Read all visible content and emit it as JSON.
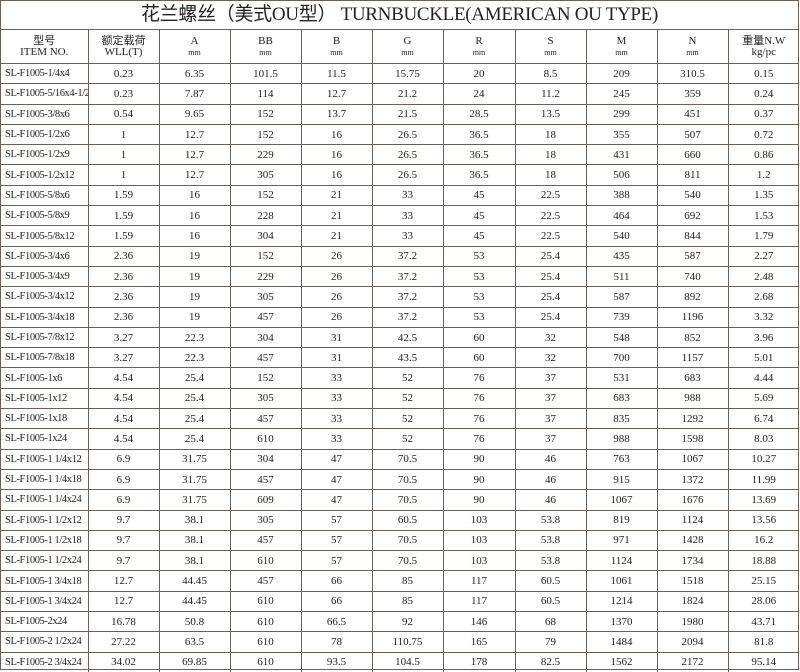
{
  "title": "花兰螺丝（美式OU型） TURNBUCKLE(AMERICAN OU TYPE)",
  "columns": [
    {
      "label": "型号",
      "sub": "ITEM NO."
    },
    {
      "label": "额定载荷",
      "sub": "WLL(T)"
    },
    {
      "label": "A",
      "sub": "mm"
    },
    {
      "label": "BB",
      "sub": "mm"
    },
    {
      "label": "B",
      "sub": "mm"
    },
    {
      "label": "G",
      "sub": "mm"
    },
    {
      "label": "R",
      "sub": "mm"
    },
    {
      "label": "S",
      "sub": "mm"
    },
    {
      "label": "M",
      "sub": "mm"
    },
    {
      "label": "N",
      "sub": "mm"
    },
    {
      "label": "重量N.W",
      "sub": "kg/pc"
    }
  ],
  "rows": [
    [
      "SL-F1005-1/4x4",
      "0.23",
      "6.35",
      "101.5",
      "11.5",
      "15.75",
      "20",
      "8.5",
      "209",
      "310.5",
      "0.15"
    ],
    [
      "SL-F1005-5/16x4-1/2",
      "0.23",
      "7.87",
      "114",
      "12.7",
      "21.2",
      "24",
      "11.2",
      "245",
      "359",
      "0.24"
    ],
    [
      "SL-F1005-3/8x6",
      "0.54",
      "9.65",
      "152",
      "13.7",
      "21.5",
      "28.5",
      "13.5",
      "299",
      "451",
      "0.37"
    ],
    [
      "SL-F1005-1/2x6",
      "1",
      "12.7",
      "152",
      "16",
      "26.5",
      "36.5",
      "18",
      "355",
      "507",
      "0.72"
    ],
    [
      "SL-F1005-1/2x9",
      "1",
      "12.7",
      "229",
      "16",
      "26.5",
      "36.5",
      "18",
      "431",
      "660",
      "0.86"
    ],
    [
      "SL-F1005-1/2x12",
      "1",
      "12.7",
      "305",
      "16",
      "26.5",
      "36.5",
      "18",
      "506",
      "811",
      "1.2"
    ],
    [
      "SL-F1005-5/8x6",
      "1.59",
      "16",
      "152",
      "21",
      "33",
      "45",
      "22.5",
      "388",
      "540",
      "1.35"
    ],
    [
      "SL-F1005-5/8x9",
      "1.59",
      "16",
      "228",
      "21",
      "33",
      "45",
      "22.5",
      "464",
      "692",
      "1.53"
    ],
    [
      "SL-F1005-5/8x12",
      "1.59",
      "16",
      "304",
      "21",
      "33",
      "45",
      "22.5",
      "540",
      "844",
      "1.79"
    ],
    [
      "SL-F1005-3/4x6",
      "2.36",
      "19",
      "152",
      "26",
      "37.2",
      "53",
      "25.4",
      "435",
      "587",
      "2.27"
    ],
    [
      "SL-F1005-3/4x9",
      "2.36",
      "19",
      "229",
      "26",
      "37.2",
      "53",
      "25.4",
      "511",
      "740",
      "2.48"
    ],
    [
      "SL-F1005-3/4x12",
      "2.36",
      "19",
      "305",
      "26",
      "37.2",
      "53",
      "25.4",
      "587",
      "892",
      "2.68"
    ],
    [
      "SL-F1005-3/4x18",
      "2.36",
      "19",
      "457",
      "26",
      "37.2",
      "53",
      "25.4",
      "739",
      "1196",
      "3.32"
    ],
    [
      "SL-F1005-7/8x12",
      "3.27",
      "22.3",
      "304",
      "31",
      "42.5",
      "60",
      "32",
      "548",
      "852",
      "3.96"
    ],
    [
      "SL-F1005-7/8x18",
      "3.27",
      "22.3",
      "457",
      "31",
      "43.5",
      "60",
      "32",
      "700",
      "1157",
      "5.01"
    ],
    [
      "SL-F1005-1x6",
      "4.54",
      "25.4",
      "152",
      "33",
      "52",
      "76",
      "37",
      "531",
      "683",
      "4.44"
    ],
    [
      "SL-F1005-1x12",
      "4.54",
      "25.4",
      "305",
      "33",
      "52",
      "76",
      "37",
      "683",
      "988",
      "5.69"
    ],
    [
      "SL-F1005-1x18",
      "4.54",
      "25.4",
      "457",
      "33",
      "52",
      "76",
      "37",
      "835",
      "1292",
      "6.74"
    ],
    [
      "SL-F1005-1x24",
      "4.54",
      "25.4",
      "610",
      "33",
      "52",
      "76",
      "37",
      "988",
      "1598",
      "8.03"
    ],
    [
      "SL-F1005-1 1/4x12",
      "6.9",
      "31.75",
      "304",
      "47",
      "70.5",
      "90",
      "46",
      "763",
      "1067",
      "10.27"
    ],
    [
      "SL-F1005-1 1/4x18",
      "6.9",
      "31.75",
      "457",
      "47",
      "70.5",
      "90",
      "46",
      "915",
      "1372",
      "11.99"
    ],
    [
      "SL-F1005-1 1/4x24",
      "6.9",
      "31.75",
      "609",
      "47",
      "70.5",
      "90",
      "46",
      "1067",
      "1676",
      "13.69"
    ],
    [
      "SL-F1005-1 1/2x12",
      "9.7",
      "38.1",
      "305",
      "57",
      "60.5",
      "103",
      "53.8",
      "819",
      "1124",
      "13.56"
    ],
    [
      "SL-F1005-1 1/2x18",
      "9.7",
      "38.1",
      "457",
      "57",
      "70.5",
      "103",
      "53.8",
      "971",
      "1428",
      "16.2"
    ],
    [
      "SL-F1005-1 1/2x24",
      "9.7",
      "38.1",
      "610",
      "57",
      "70.5",
      "103",
      "53.8",
      "1124",
      "1734",
      "18.88"
    ],
    [
      "SL-F1005-1 3/4x18",
      "12.7",
      "44.45",
      "457",
      "66",
      "85",
      "117",
      "60.5",
      "1061",
      "1518",
      "25.15"
    ],
    [
      "SL-F1005-1 3/4x24",
      "12.7",
      "44.45",
      "610",
      "66",
      "85",
      "117",
      "60.5",
      "1214",
      "1824",
      "28.06"
    ],
    [
      "SL-F1005-2x24",
      "16.78",
      "50.8",
      "610",
      "66.5",
      "92",
      "146",
      "68",
      "1370",
      "1980",
      "43.71"
    ],
    [
      "SL-F1005-2 1/2x24",
      "27.22",
      "63.5",
      "610",
      "78",
      "110.75",
      "165",
      "79",
      "1484",
      "2094",
      "81.8"
    ],
    [
      "SL-F1005-2 3/4x24",
      "34.02",
      "69.85",
      "610",
      "93.5",
      "104.5",
      "178",
      "82.5",
      "1562",
      "2172",
      "95.14"
    ]
  ]
}
